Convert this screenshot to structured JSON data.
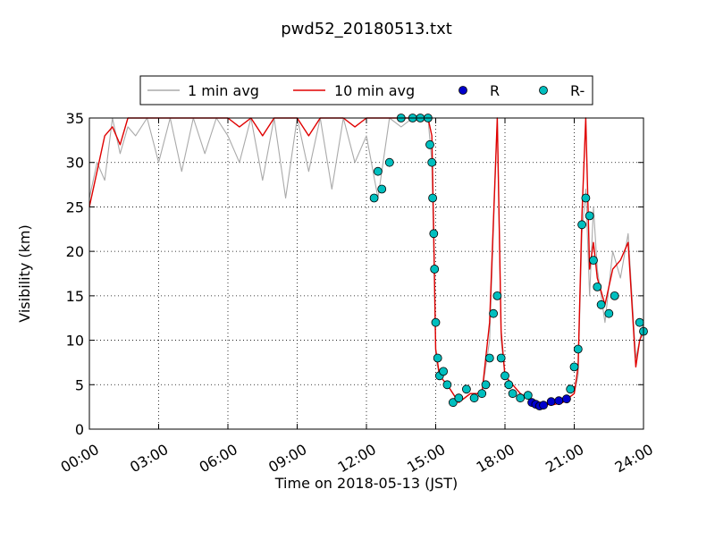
{
  "chart_data": {
    "type": "line",
    "title": "pwd52_20180513.txt",
    "xlabel": "Time on 2018-05-13 (JST)",
    "ylabel": "Visibility (km)",
    "xlim": [
      "00:00",
      "24:00"
    ],
    "ylim": [
      0,
      35
    ],
    "x_ticks": [
      "00:00",
      "03:00",
      "06:00",
      "09:00",
      "12:00",
      "15:00",
      "18:00",
      "21:00",
      "24:00"
    ],
    "y_ticks": [
      "0",
      "5",
      "10",
      "15",
      "20",
      "25",
      "30",
      "35"
    ],
    "grid": true,
    "legend_position": "top-center",
    "legend": [
      {
        "label": "1 min avg",
        "kind": "line",
        "color": "#aaaaaa"
      },
      {
        "label": "10 min avg",
        "kind": "line",
        "color": "#e00000"
      },
      {
        "label": "R",
        "kind": "marker",
        "color": "#0000cc"
      },
      {
        "label": "R-",
        "kind": "marker",
        "color": "#00bfbf"
      }
    ],
    "series": [
      {
        "name": "1 min avg",
        "color": "#aaaaaa",
        "x": [
          "00:00",
          "00:20",
          "00:40",
          "01:00",
          "01:20",
          "01:40",
          "02:00",
          "02:30",
          "03:00",
          "03:30",
          "04:00",
          "04:30",
          "05:00",
          "05:30",
          "06:00",
          "06:30",
          "07:00",
          "07:30",
          "08:00",
          "08:30",
          "09:00",
          "09:30",
          "10:00",
          "10:30",
          "11:00",
          "11:30",
          "12:00",
          "12:30",
          "13:00",
          "13:30",
          "14:00",
          "14:20",
          "14:40",
          "14:50",
          "14:55",
          "15:00",
          "15:10",
          "15:30",
          "16:00",
          "16:30",
          "17:00",
          "17:20",
          "17:40",
          "17:50",
          "18:00",
          "18:20",
          "18:40",
          "19:00",
          "19:30",
          "20:00",
          "20:30",
          "21:00",
          "21:10",
          "21:20",
          "21:30",
          "21:40",
          "21:50",
          "22:00",
          "22:20",
          "22:40",
          "23:00",
          "23:20",
          "23:40",
          "23:50",
          "24:00"
        ],
        "y": [
          26,
          30,
          28,
          35,
          31,
          34,
          33,
          35,
          30,
          35,
          29,
          35,
          31,
          35,
          33,
          30,
          35,
          28,
          35,
          26,
          35,
          29,
          35,
          27,
          35,
          30,
          33,
          26,
          35,
          34,
          35,
          35,
          35,
          30,
          20,
          8,
          6,
          5,
          3,
          4,
          4,
          10,
          35,
          10,
          6,
          5,
          4,
          3.5,
          3,
          2.7,
          3,
          4,
          6,
          22,
          27,
          15,
          25,
          18,
          12,
          20,
          17,
          22,
          8,
          10,
          12
        ]
      },
      {
        "name": "10 min avg",
        "color": "#e00000",
        "x": [
          "00:00",
          "00:20",
          "00:40",
          "01:00",
          "01:20",
          "01:40",
          "02:00",
          "02:30",
          "03:00",
          "03:30",
          "04:00",
          "04:30",
          "05:00",
          "05:30",
          "06:00",
          "06:30",
          "07:00",
          "07:30",
          "08:00",
          "08:30",
          "09:00",
          "09:30",
          "10:00",
          "10:30",
          "11:00",
          "11:30",
          "12:00",
          "12:30",
          "13:00",
          "13:30",
          "14:00",
          "14:20",
          "14:40",
          "14:50",
          "14:55",
          "15:00",
          "15:10",
          "15:30",
          "16:00",
          "16:30",
          "17:00",
          "17:20",
          "17:40",
          "17:50",
          "18:00",
          "18:20",
          "18:40",
          "19:00",
          "19:30",
          "20:00",
          "20:30",
          "21:00",
          "21:10",
          "21:20",
          "21:30",
          "21:40",
          "21:50",
          "22:00",
          "22:20",
          "22:40",
          "23:00",
          "23:20",
          "23:40",
          "23:50",
          "24:00"
        ],
        "y": [
          25,
          29,
          33,
          34,
          32,
          35,
          35,
          35,
          35,
          35,
          35,
          35,
          35,
          35,
          35,
          34,
          35,
          33,
          35,
          35,
          35,
          33,
          35,
          35,
          35,
          34,
          35,
          35,
          35,
          35,
          35,
          35,
          35,
          33,
          22,
          9,
          6,
          5,
          3,
          4,
          4,
          12,
          35,
          11,
          6,
          5,
          4,
          3.5,
          3,
          2.7,
          3,
          4,
          7,
          24,
          35,
          18,
          21,
          17,
          14,
          18,
          19,
          21,
          7,
          10,
          11
        ]
      },
      {
        "name": "R",
        "color": "#0000cc",
        "x": [
          "19:10",
          "19:20",
          "19:30",
          "19:40",
          "20:00",
          "20:20",
          "20:40"
        ],
        "y": [
          3,
          2.8,
          2.6,
          2.7,
          3.1,
          3.2,
          3.4
        ]
      },
      {
        "name": "R-",
        "color": "#00bfbf",
        "x": [
          "12:20",
          "12:30",
          "12:40",
          "13:00",
          "13:30",
          "14:00",
          "14:20",
          "14:40",
          "14:45",
          "14:50",
          "14:52",
          "14:55",
          "14:57",
          "15:00",
          "15:05",
          "15:10",
          "15:20",
          "15:30",
          "15:45",
          "16:00",
          "16:20",
          "16:40",
          "17:00",
          "17:10",
          "17:20",
          "17:30",
          "17:40",
          "17:50",
          "18:00",
          "18:10",
          "18:20",
          "18:40",
          "19:00",
          "20:50",
          "21:00",
          "21:10",
          "21:20",
          "21:30",
          "21:40",
          "21:50",
          "22:00",
          "22:10",
          "22:30",
          "22:45",
          "23:50",
          "24:00"
        ],
        "y": [
          26,
          29,
          27,
          30,
          35,
          35,
          35,
          35,
          32,
          30,
          26,
          22,
          18,
          12,
          8,
          6,
          6.5,
          5,
          3,
          3.5,
          4.5,
          3.5,
          4,
          5,
          8,
          13,
          15,
          8,
          6,
          5,
          4,
          3.5,
          3.8,
          4.5,
          7,
          9,
          23,
          26,
          24,
          19,
          16,
          14,
          13,
          15,
          12,
          11
        ]
      }
    ]
  }
}
